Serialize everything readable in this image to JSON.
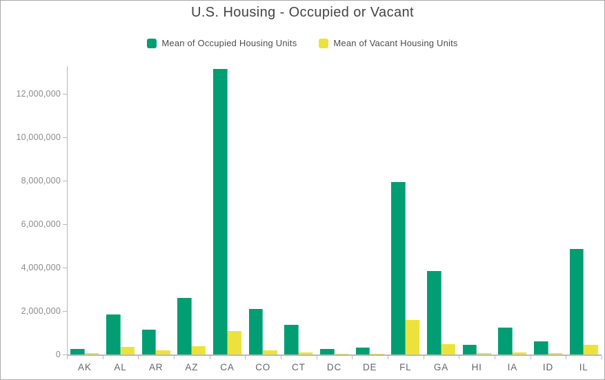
{
  "title": "U.S. Housing - Occupied or Vacant",
  "colors": {
    "occupied": "#009E72",
    "vacant": "#EDE23D",
    "axis": "#b9b9b9",
    "y_label_text": "#8a8a8a",
    "x_label_text": "#5f666c",
    "title_text": "#434343",
    "legend_text": "#4d4d4d"
  },
  "legend": {
    "items": [
      {
        "label": "Mean of Occupied Housing Units",
        "color": "#009E72"
      },
      {
        "label": "Mean of Vacant Housing Units",
        "color": "#EDE23D"
      }
    ]
  },
  "chart_data": {
    "type": "bar",
    "title": "U.S. Housing - Occupied or Vacant",
    "xlabel": "",
    "ylabel": "",
    "grid": false,
    "legend_position": "top",
    "ylim": [
      0,
      13270000
    ],
    "y_ticks": [
      0,
      2000000,
      4000000,
      6000000,
      8000000,
      10000000,
      12000000
    ],
    "y_tick_labels": [
      "0",
      "2,000,000",
      "4,000,000",
      "6,000,000",
      "8,000,000",
      "10,000,000",
      "12,000,000"
    ],
    "categories": [
      "AK",
      "AL",
      "AR",
      "AZ",
      "CA",
      "CO",
      "CT",
      "DC",
      "DE",
      "FL",
      "GA",
      "HI",
      "IA",
      "ID",
      "IL"
    ],
    "series": [
      {
        "name": "Mean of Occupied Housing Units",
        "key": "occupied",
        "values": [
          250000,
          1850000,
          1140000,
          2610000,
          13150000,
          2090000,
          1350000,
          250000,
          320000,
          7930000,
          3830000,
          430000,
          1240000,
          610000,
          4870000
        ]
      },
      {
        "name": "Mean of Vacant Housing Units",
        "key": "vacant",
        "values": [
          60000,
          360000,
          180000,
          380000,
          1080000,
          190000,
          90000,
          30000,
          40000,
          1600000,
          470000,
          60000,
          110000,
          70000,
          460000
        ]
      }
    ]
  }
}
